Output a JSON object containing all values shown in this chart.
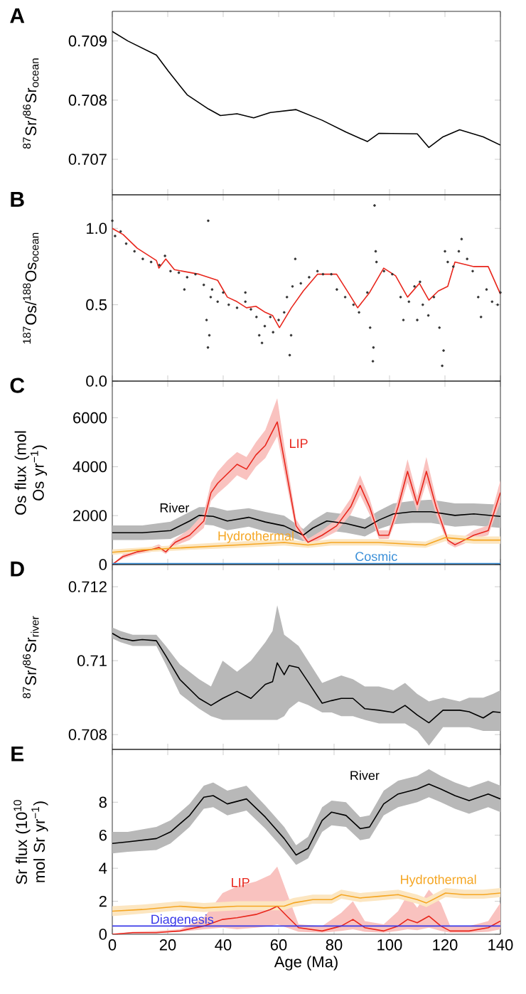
{
  "chart_data": [
    {
      "type": "line",
      "title": "A",
      "ylabel": "$^{87}$Sr/$^{86}$Sr$_{ocean}$",
      "xlim": [
        0,
        140
      ],
      "xticks": [
        0,
        20,
        40,
        60,
        80,
        100,
        120,
        140
      ],
      "ylim": [
        0.7064,
        0.7095
      ],
      "yticks": [
        0.707,
        0.708,
        0.709
      ],
      "tick_labels": "y",
      "series": [
        {
          "color": "#000000",
          "x": [
            0,
            5.6,
            15.9,
            20.2,
            27,
            34.7,
            39,
            45,
            51,
            57,
            66.3,
            75.7,
            84.3,
            92,
            96.2,
            110,
            114.2,
            119.3,
            125.3,
            133.8,
            140
          ],
          "values": [
            0.70916,
            0.709,
            0.70876,
            0.70849,
            0.70809,
            0.70785,
            0.70774,
            0.70777,
            0.7077,
            0.70779,
            0.70784,
            0.70766,
            0.70746,
            0.7073,
            0.70744,
            0.70743,
            0.7072,
            0.70738,
            0.7075,
            0.70738,
            0.70724
          ]
        }
      ]
    },
    {
      "type": "line",
      "title": "B",
      "ylabel": "$^{187}$Os/$^{188}$Os$_{ocean}$",
      "xlim": [
        0,
        140
      ],
      "xticks": [
        0,
        20,
        40,
        60,
        80,
        100,
        120,
        140
      ],
      "ylim": [
        0,
        1.22
      ],
      "yticks": [
        {
          "value": 0,
          "label": "0.0"
        },
        0.5,
        {
          "value": 1,
          "label": "1.0"
        }
      ],
      "tick_labels": "y",
      "series": [
        {
          "type": "scatter",
          "marker": "circle",
          "color": "#333333",
          "x": [
            0,
            1,
            3,
            5,
            8,
            11,
            14,
            17,
            19,
            21,
            24,
            27,
            30,
            33,
            34,
            34.5,
            35,
            35.5,
            34.6,
            36,
            38,
            40,
            42,
            45,
            48,
            50,
            52,
            53,
            54,
            55,
            57,
            58,
            60,
            62,
            63,
            64,
            64.5,
            65,
            66,
            68,
            71,
            74,
            76,
            79,
            81,
            84,
            87,
            89,
            92,
            93,
            94,
            94.2,
            94.6,
            95,
            95.3,
            98,
            101,
            104,
            105,
            107,
            109,
            111,
            112,
            114,
            116,
            118,
            119,
            119.5,
            120,
            121,
            123,
            125,
            126,
            128,
            130,
            132,
            133,
            135,
            137,
            139,
            140,
            26,
            48,
            110
          ],
          "values": [
            1.05,
            0.95,
            0.98,
            0.9,
            0.85,
            0.8,
            0.78,
            0.76,
            0.82,
            0.72,
            0.71,
            0.68,
            0.7,
            0.63,
            0.4,
            0.22,
            0.3,
            0.55,
            1.05,
            0.6,
            0.52,
            0.58,
            0.5,
            0.48,
            0.52,
            0.47,
            0.42,
            0.3,
            0.25,
            0.36,
            0.42,
            0.32,
            0.4,
            0.45,
            0.55,
            0.17,
            0.3,
            0.62,
            0.8,
            0.64,
            0.68,
            0.72,
            0.7,
            0.7,
            0.6,
            0.55,
            0.5,
            0.45,
            0.58,
            0.35,
            0.13,
            0.22,
            1.15,
            0.85,
            0.78,
            0.72,
            0.7,
            0.55,
            0.4,
            0.52,
            0.62,
            0.65,
            0.5,
            0.43,
            0.55,
            0.35,
            0.1,
            0.2,
            0.85,
            0.78,
            0.75,
            0.85,
            0.93,
            0.8,
            0.72,
            0.55,
            0.42,
            0.6,
            0.52,
            0.5,
            0.58,
            0.6,
            0.58,
            0.4
          ]
        },
        {
          "type": "line",
          "color": "#e8261c",
          "x": [
            0,
            3.9,
            9,
            15.9,
            16.8,
            19.3,
            22.4,
            31.3,
            38,
            41.5,
            45,
            48.4,
            51.8,
            55.2,
            57.8,
            60.3,
            64.6,
            68.9,
            74,
            80.9,
            85.1,
            88.5,
            92.8,
            97.9,
            102.2,
            106.5,
            110.8,
            114.2,
            117.6,
            121,
            123.6,
            130.4,
            135.6,
            140
          ],
          "values": [
            1.0,
            0.96,
            0.87,
            0.79,
            0.74,
            0.8,
            0.73,
            0.7,
            0.66,
            0.55,
            0.52,
            0.48,
            0.49,
            0.45,
            0.43,
            0.35,
            0.48,
            0.59,
            0.7,
            0.7,
            0.58,
            0.48,
            0.58,
            0.74,
            0.69,
            0.55,
            0.64,
            0.53,
            0.59,
            0.62,
            0.78,
            0.75,
            0.75,
            0.57
          ]
        }
      ]
    },
    {
      "type": "line",
      "title": "C",
      "ylabel": "Os flux (mol Os yr$^{−1}$)",
      "xlim": [
        0,
        140
      ],
      "xticks": [
        0,
        20,
        40,
        60,
        80,
        100,
        120,
        140
      ],
      "ylim": [
        0,
        7500
      ],
      "yticks": [
        0,
        2000,
        4000,
        6000
      ],
      "tick_labels": "y",
      "series": [
        {
          "name": "River",
          "color": "#000000",
          "x": [
            0,
            10.8,
            21,
            27.9,
            31.3,
            36.4,
            41.5,
            49.2,
            55.2,
            62,
            68.9,
            72.3,
            77.4,
            84.3,
            91.1,
            96.2,
            101.4,
            108.2,
            115,
            123.6,
            130.4,
            140
          ],
          "values": [
            1300,
            1300,
            1390,
            1780,
            2010,
            1970,
            1780,
            1930,
            1740,
            1580,
            1200,
            1490,
            1780,
            1680,
            1490,
            1820,
            2070,
            2160,
            2160,
            2010,
            2070,
            1970
          ],
          "lower": [
            1000,
            1000,
            1050,
            1400,
            1650,
            1600,
            1400,
            1550,
            1350,
            1200,
            950,
            1150,
            1400,
            1300,
            1150,
            1450,
            1650,
            1700,
            1700,
            1550,
            1600,
            1500
          ],
          "upper": [
            1600,
            1600,
            1750,
            2150,
            2350,
            2350,
            2200,
            2300,
            2150,
            2000,
            1450,
            1800,
            2150,
            2050,
            1850,
            2200,
            2500,
            2600,
            2650,
            2500,
            2500,
            2450
          ]
        },
        {
          "name": "LIP",
          "color": "#e8261c",
          "x": [
            0,
            3.9,
            9,
            14.2,
            16.8,
            19.3,
            22.7,
            27.9,
            33,
            35.6,
            38,
            41.5,
            45,
            48.4,
            51.8,
            55.2,
            59.5,
            62,
            66.3,
            70.6,
            75.7,
            80.9,
            86,
            89.4,
            92.8,
            96.2,
            99.7,
            103.1,
            106.5,
            110,
            113.3,
            116.8,
            121,
            123.6,
            127,
            130.4,
            135.6,
            140
          ],
          "values": [
            0,
            330,
            520,
            620,
            700,
            520,
            910,
            1200,
            1780,
            2940,
            3320,
            3710,
            4100,
            3900,
            4480,
            4870,
            5830,
            4290,
            1580,
            910,
            1200,
            1580,
            2360,
            3230,
            2360,
            1200,
            1200,
            2360,
            3810,
            2450,
            3810,
            2360,
            1000,
            810,
            1000,
            1200,
            1390,
            2940
          ],
          "lower": [
            0,
            250,
            430,
            520,
            600,
            430,
            780,
            1000,
            1500,
            2600,
            2900,
            3250,
            3650,
            3450,
            4000,
            4350,
            5250,
            3800,
            1350,
            780,
            1050,
            1350,
            2050,
            2850,
            2050,
            1050,
            1050,
            2050,
            3350,
            2150,
            3350,
            2050,
            850,
            700,
            850,
            1050,
            1200,
            2550
          ],
          "upper": [
            0,
            420,
            620,
            720,
            830,
            620,
            1050,
            1450,
            2100,
            3350,
            3800,
            4250,
            4600,
            4400,
            5000,
            5500,
            6800,
            4900,
            1850,
            1050,
            1400,
            1850,
            2700,
            3650,
            2700,
            1400,
            1400,
            2700,
            4300,
            2800,
            4400,
            2700,
            1150,
            950,
            1150,
            1400,
            1600,
            3450
          ]
        },
        {
          "name": "Hydrothermal",
          "color": "#f5a623",
          "x": [
            0,
            10.8,
            27.9,
            45,
            62,
            70.6,
            79,
            96,
            113,
            120,
            130.4,
            140
          ],
          "values": [
            500,
            600,
            700,
            800,
            900,
            800,
            900,
            900,
            800,
            1100,
            1000,
            1000
          ],
          "lower": [
            400,
            500,
            600,
            680,
            780,
            680,
            780,
            780,
            680,
            950,
            850,
            850
          ],
          "upper": [
            620,
            700,
            830,
            940,
            1040,
            920,
            1040,
            1040,
            940,
            1250,
            1150,
            1150
          ]
        },
        {
          "name": "Cosmic",
          "color": "#3a8fd8",
          "x": [
            0,
            140
          ],
          "values": [
            40,
            40
          ]
        }
      ]
    },
    {
      "type": "line",
      "title": "D",
      "ylabel": "$^{87}$Sr/$^{86}$Sr$_{river}$",
      "xlim": [
        0,
        140
      ],
      "xticks": [
        0,
        20,
        40,
        60,
        80,
        100,
        120,
        140
      ],
      "ylim": [
        0.7076,
        0.7126
      ],
      "yticks": [
        0.708,
        0.71,
        0.712
      ],
      "tick_labels": "y",
      "series": [
        {
          "color": "#000000",
          "x": [
            0,
            3,
            7.4,
            10.8,
            15.9,
            19.3,
            24.4,
            31.3,
            35.6,
            39.8,
            45,
            50,
            55.2,
            57.8,
            59.5,
            62,
            63.8,
            67.2,
            70.6,
            75.7,
            79.1,
            82.6,
            86.8,
            91.1,
            96.2,
            101.4,
            105.6,
            110,
            114.2,
            119.3,
            125.3,
            128.7,
            133.8,
            137.3,
            140
          ],
          "values": [
            0.71074,
            0.71061,
            0.71054,
            0.71057,
            0.71054,
            0.71013,
            0.70949,
            0.70898,
            0.70879,
            0.70898,
            0.70917,
            0.70898,
            0.70936,
            0.70943,
            0.70994,
            0.70962,
            0.70987,
            0.70981,
            0.70943,
            0.70885,
            0.70892,
            0.70898,
            0.70898,
            0.7087,
            0.70866,
            0.7086,
            0.70879,
            0.70853,
            0.70832,
            0.70866,
            0.70866,
            0.70862,
            0.70845,
            0.70862,
            0.7086
          ],
          "lower": [
            0.7106,
            0.7105,
            0.7104,
            0.7104,
            0.7104,
            0.7099,
            0.7091,
            0.7087,
            0.7085,
            0.7084,
            0.7084,
            0.7084,
            0.7084,
            0.7084,
            0.7084,
            0.7085,
            0.7087,
            0.7089,
            0.7088,
            0.7086,
            0.7086,
            0.7085,
            0.7085,
            0.7084,
            0.7083,
            0.7083,
            0.7083,
            0.7081,
            0.7077,
            0.7082,
            0.7082,
            0.7082,
            0.7081,
            0.7081,
            0.7081
          ],
          "upper": [
            0.7109,
            0.7108,
            0.7107,
            0.7107,
            0.7107,
            0.7104,
            0.7099,
            0.7095,
            0.7093,
            0.71,
            0.7097,
            0.71,
            0.7105,
            0.7108,
            0.7115,
            0.7107,
            0.7106,
            0.7104,
            0.71,
            0.7094,
            0.7095,
            0.7096,
            0.7095,
            0.7093,
            0.7093,
            0.7092,
            0.7094,
            0.7091,
            0.7089,
            0.709,
            0.7089,
            0.709,
            0.709,
            0.7091,
            0.7092
          ]
        }
      ]
    },
    {
      "type": "line",
      "title": "E",
      "xlabel": "Age (Ma)",
      "ylabel": "Sr flux (10$^{10}$ mol Sr yr$^{−1}$)",
      "xlim": [
        0,
        140
      ],
      "xticks": [
        0,
        20,
        40,
        60,
        80,
        100,
        120,
        140
      ],
      "ylim": [
        0,
        11.2
      ],
      "yticks": [
        0,
        2,
        4,
        6,
        8
      ],
      "series": [
        {
          "name": "River",
          "color": "#000000",
          "x": [
            0,
            5.6,
            15.9,
            21,
            27.9,
            33,
            36.4,
            41.5,
            48.4,
            55.2,
            62,
            66.3,
            70.6,
            75.7,
            79.1,
            84.3,
            89.4,
            92.8,
            97.9,
            103.1,
            110,
            114.2,
            118.5,
            123.6,
            128.7,
            135.6,
            140
          ],
          "values": [
            5.5,
            5.6,
            5.8,
            6.2,
            7.2,
            8.3,
            8.4,
            7.9,
            8.2,
            7.1,
            5.8,
            4.8,
            5.2,
            6.9,
            7.4,
            7.2,
            6.4,
            6.5,
            7.9,
            8.5,
            8.8,
            9.1,
            8.8,
            8.4,
            8.1,
            8.5,
            8.2
          ],
          "lower": [
            4.9,
            5.0,
            5.1,
            5.5,
            6.5,
            7.6,
            7.7,
            7.2,
            7.5,
            6.4,
            5.1,
            4.2,
            4.6,
            6.2,
            6.6,
            6.5,
            5.7,
            5.8,
            7.2,
            7.7,
            8.0,
            8.3,
            8.0,
            7.6,
            7.3,
            7.7,
            7.4
          ],
          "upper": [
            6.2,
            6.2,
            6.5,
            6.9,
            7.9,
            9.0,
            9.2,
            8.7,
            9.0,
            7.8,
            6.5,
            5.4,
            5.9,
            7.7,
            8.1,
            8.0,
            7.1,
            7.2,
            8.7,
            9.3,
            9.6,
            10.0,
            9.6,
            9.2,
            8.9,
            9.3,
            9.0
          ]
        },
        {
          "name": "LIP",
          "color": "#e8261c",
          "x": [
            0,
            7.4,
            15.9,
            24.4,
            33,
            39.8,
            45,
            51.8,
            57,
            59.5,
            63,
            67.2,
            75.7,
            82.6,
            86.8,
            91.1,
            97.9,
            103.1,
            106.5,
            110,
            114.2,
            118.5,
            121.9,
            128.7,
            135.6,
            140
          ],
          "values": [
            0,
            0.1,
            0.1,
            0.2,
            0.5,
            0.9,
            1.0,
            1.2,
            1.5,
            1.7,
            1.1,
            0.4,
            0.2,
            0.5,
            0.9,
            0.4,
            0.2,
            0.5,
            0.9,
            0.7,
            1.1,
            0.5,
            0.2,
            0.2,
            0.4,
            0.8
          ],
          "lower": [
            0,
            0.05,
            0.1,
            0.15,
            0.3,
            0.4,
            0.3,
            0.4,
            0.5,
            0.6,
            0.4,
            0.15,
            0.1,
            0.2,
            0.3,
            0.15,
            0.1,
            0.2,
            0.3,
            0.25,
            0.4,
            0.2,
            0.1,
            0.1,
            0.15,
            0.3
          ],
          "upper": [
            0,
            0.15,
            0.2,
            0.3,
            1.0,
            2.5,
            2.9,
            3.2,
            3.6,
            4.1,
            2.5,
            0.6,
            0.5,
            1.3,
            2.0,
            0.8,
            0.6,
            1.4,
            2.4,
            1.6,
            2.7,
            1.9,
            0.5,
            0.5,
            0.8,
            1.9
          ]
        },
        {
          "name": "Hydrothermal",
          "color": "#f5a623",
          "x": [
            0,
            10.8,
            24.4,
            33,
            45,
            55.2,
            62,
            65.3,
            72.3,
            79.1,
            82.6,
            89.4,
            96.2,
            103.1,
            110,
            113.3,
            120.2,
            127,
            133.8,
            140
          ],
          "values": [
            1.4,
            1.5,
            1.7,
            1.6,
            1.7,
            1.7,
            1.7,
            1.9,
            2.1,
            2.1,
            2.4,
            2.2,
            2.3,
            2.4,
            2.1,
            1.9,
            2.5,
            2.4,
            2.4,
            2.5
          ],
          "lower": [
            1.1,
            1.25,
            1.45,
            1.35,
            1.45,
            1.45,
            1.45,
            1.65,
            1.85,
            1.85,
            2.15,
            1.95,
            2.05,
            2.15,
            1.85,
            1.65,
            2.25,
            2.15,
            2.15,
            2.25
          ],
          "upper": [
            1.7,
            1.8,
            2.0,
            1.9,
            2.0,
            2.0,
            2.0,
            2.2,
            2.4,
            2.4,
            2.7,
            2.5,
            2.6,
            2.7,
            2.4,
            2.2,
            2.8,
            2.7,
            2.7,
            2.8
          ]
        },
        {
          "name": "Diagenesis",
          "color": "#3a3ae8",
          "x": [
            0,
            140
          ],
          "values": [
            0.5,
            0.5
          ]
        }
      ]
    }
  ]
}
